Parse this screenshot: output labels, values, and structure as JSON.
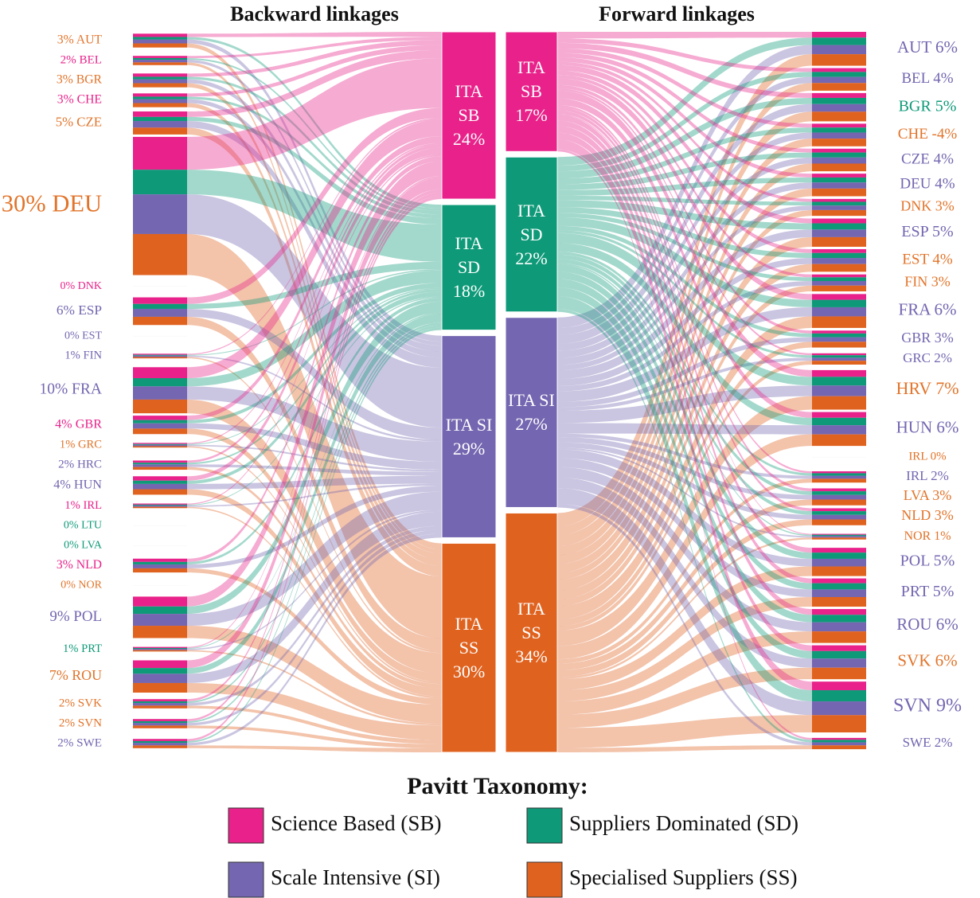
{
  "chart_data": [
    {
      "type": "sankey",
      "title": "Backward linkages",
      "countries": {
        "values": [
          3,
          2,
          3,
          3,
          5,
          30,
          0,
          6,
          0,
          1,
          10,
          4,
          1,
          2,
          4,
          1,
          0,
          0,
          3,
          0,
          9,
          1,
          7,
          2,
          2,
          2
        ],
        "value_labels": [
          "3% AUT",
          "2% BEL",
          "3% BGR",
          "3% CHE",
          "5% CZE",
          "30% DEU",
          "0% DNK",
          "6% ESP",
          "0% EST",
          "1% FIN",
          "10% FRA",
          "4% GBR",
          "1% GRC",
          "2% HRC",
          "4% HUN",
          "1% IRL",
          "0% LTU",
          "0% LVA",
          "3% NLD",
          "0% NOR",
          "9% POL",
          "1% PRT",
          "7% ROU",
          "2% SVK",
          "2% SVN",
          "2% SWE"
        ],
        "colors": [
          "#e2742a",
          "#e8228a",
          "#e2742a",
          "#e8228a",
          "#e2742a",
          "#e2742a",
          "#e8228a",
          "#7466b0",
          "#7466b0",
          "#7466b0",
          "#7466b0",
          "#e8228a",
          "#e2742a",
          "#7466b0",
          "#7466b0",
          "#e8228a",
          "#0e9a78",
          "#0e9a78",
          "#e8228a",
          "#e2742a",
          "#7466b0",
          "#0e9a78",
          "#e2742a",
          "#e2742a",
          "#e2742a",
          "#7466b0"
        ]
      },
      "ita": {
        "values": [
          24,
          18,
          29,
          30
        ],
        "value_labels": [
          "ITA SB 24%",
          "ITA SD 18%",
          "ITA SI 29%",
          "ITA SS 30%"
        ]
      }
    },
    {
      "type": "sankey",
      "title": "Forward linkages",
      "ita": {
        "values": [
          17,
          22,
          27,
          34
        ],
        "value_labels": [
          "ITA SB 17%",
          "ITA SD 22%",
          "ITA SI 27%",
          "ITA SS 34%"
        ]
      },
      "countries": {
        "values": [
          6,
          4,
          5,
          -4,
          4,
          4,
          3,
          5,
          4,
          3,
          6,
          3,
          2,
          7,
          6,
          0,
          2,
          3,
          3,
          1,
          5,
          5,
          6,
          6,
          9,
          2
        ],
        "value_labels": [
          "AUT 6%",
          "BEL 4%",
          "BGR 5%",
          "CHE -4%",
          "CZE 4%",
          "DEU 4%",
          "DNK 3%",
          "ESP 5%",
          "EST  4%",
          "FIN  3%",
          "FRA  6%",
          "GBR 3%",
          "GRC 2%",
          "HRV 7%",
          "HUN 6%",
          "IRL  0%",
          "IRL 2%",
          "LVA 3%",
          "NLD 3%",
          "NOR  1%",
          "POL 5%",
          "PRT 5%",
          "ROU 6%",
          "SVK 6%",
          "SVN  9%",
          "SWE 2%"
        ],
        "colors": [
          "#7466b0",
          "#7466b0",
          "#0e9a78",
          "#e2742a",
          "#7466b0",
          "#7466b0",
          "#e2742a",
          "#7466b0",
          "#e2742a",
          "#e2742a",
          "#7466b0",
          "#7466b0",
          "#7466b0",
          "#e2742a",
          "#7466b0",
          "#e2742a",
          "#7466b0",
          "#e2742a",
          "#e2742a",
          "#e2742a",
          "#7466b0",
          "#7466b0",
          "#7466b0",
          "#e2742a",
          "#7466b0",
          "#7466b0"
        ]
      }
    }
  ],
  "legend": {
    "title": "Pavitt Taxonomy:",
    "items": [
      {
        "name": "Science Based (SB)",
        "color": "#e8228a"
      },
      {
        "name": "Suppliers Dominated (SD)",
        "color": "#0e9a78"
      },
      {
        "name": "Scale Intensive (SI)",
        "color": "#7466b0"
      },
      {
        "name": "Specialised Suppliers (SS)",
        "color": "#e0621f"
      }
    ]
  }
}
